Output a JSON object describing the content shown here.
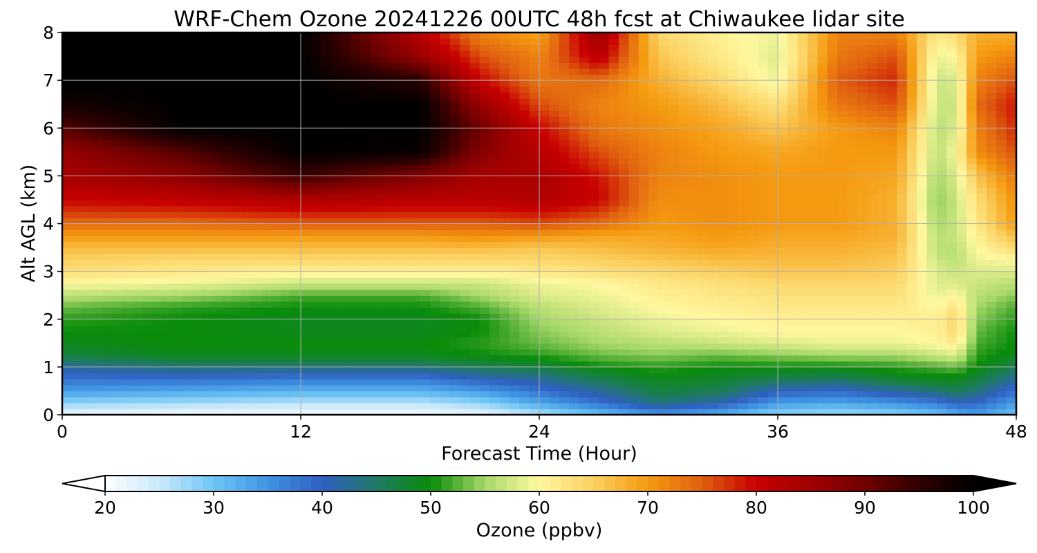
{
  "chart_data": {
    "type": "heatmap",
    "title": "WRF-Chem Ozone  20241226 00UTC 48h fcst at Chiwaukee lidar site",
    "xlabel": "Forecast Time (Hour)",
    "ylabel": "Alt AGL (km)",
    "xlim": [
      0,
      48
    ],
    "ylim": [
      0,
      8
    ],
    "xticks": [
      "0",
      "12",
      "24",
      "36",
      "48"
    ],
    "yticks": [
      "0",
      "1",
      "2",
      "3",
      "4",
      "5",
      "6",
      "7",
      "8"
    ],
    "grid": true,
    "colorbar": {
      "label": "Ozone  (ppbv)",
      "range": [
        20,
        100
      ],
      "ticks": [
        "20",
        "30",
        "40",
        "50",
        "60",
        "70",
        "80",
        "90",
        "100"
      ],
      "extend": "both",
      "stops": [
        [
          20,
          "#ffffff"
        ],
        [
          25,
          "#cbe9fb"
        ],
        [
          30,
          "#6ec5f5"
        ],
        [
          35,
          "#3f93e2"
        ],
        [
          40,
          "#2f5fc2"
        ],
        [
          45,
          "#1f7a64"
        ],
        [
          50,
          "#0a8c0a"
        ],
        [
          55,
          "#a8d86a"
        ],
        [
          60,
          "#fff8a0"
        ],
        [
          65,
          "#fbd060"
        ],
        [
          70,
          "#f59a10"
        ],
        [
          75,
          "#e06010"
        ],
        [
          80,
          "#c80000"
        ],
        [
          85,
          "#a00000"
        ],
        [
          90,
          "#700000"
        ],
        [
          95,
          "#300000"
        ],
        [
          100,
          "#000000"
        ]
      ]
    },
    "x_hours": [
      0,
      6,
      12,
      18,
      21,
      24,
      27,
      30,
      33,
      36,
      39,
      42,
      44,
      45,
      46,
      48
    ],
    "alt_km": [
      0,
      0.25,
      0.5,
      0.75,
      1,
      1.25,
      1.5,
      1.75,
      2,
      2.25,
      2.5,
      2.75,
      3,
      3.25,
      3.5,
      3.75,
      4,
      4.5,
      5,
      5.5,
      6,
      6.5,
      7,
      7.5,
      8
    ],
    "ozone_ppbv_rows_by_altitude": [
      [
        22,
        21,
        21,
        21,
        22,
        26,
        30,
        34,
        32,
        28,
        27,
        28,
        30,
        32,
        34,
        30
      ],
      [
        28,
        27,
        26,
        26,
        28,
        33,
        38,
        44,
        41,
        34,
        33,
        35,
        37,
        40,
        39,
        34
      ],
      [
        34,
        33,
        32,
        32,
        34,
        38,
        42,
        47,
        46,
        40,
        39,
        42,
        44,
        46,
        44,
        38
      ],
      [
        38,
        38,
        37,
        37,
        40,
        42,
        46,
        49,
        48,
        46,
        45,
        48,
        49,
        49,
        47,
        42
      ],
      [
        42,
        44,
        44,
        44,
        46,
        47,
        50,
        51,
        50,
        50,
        50,
        51,
        52,
        53,
        50,
        46
      ],
      [
        47,
        49,
        49,
        49,
        50,
        51,
        53,
        54,
        53,
        54,
        55,
        55,
        57,
        58,
        51,
        49
      ],
      [
        49,
        50,
        50,
        50,
        51,
        53,
        55,
        56,
        57,
        58,
        59,
        59,
        60,
        62,
        52,
        50
      ],
      [
        50,
        50,
        49,
        49,
        50,
        54,
        56,
        58,
        59,
        60,
        60,
        60,
        61,
        64,
        53,
        50
      ],
      [
        51,
        50,
        49,
        49,
        50,
        55,
        57,
        59,
        60,
        61,
        61,
        61,
        61,
        64,
        54,
        51
      ],
      [
        53,
        51,
        50,
        50,
        52,
        56,
        58,
        60,
        61,
        62,
        62,
        62,
        60,
        63,
        55,
        52
      ],
      [
        56,
        55,
        52,
        52,
        55,
        58,
        59,
        61,
        62,
        63,
        63,
        63,
        59,
        60,
        56,
        54
      ],
      [
        60,
        59,
        57,
        57,
        57,
        59,
        60,
        62,
        63,
        64,
        64,
        64,
        58,
        58,
        57,
        56
      ],
      [
        63,
        62,
        61,
        61,
        61,
        62,
        63,
        64,
        65,
        66,
        66,
        65,
        58,
        57,
        58,
        58
      ],
      [
        65,
        64,
        64,
        64,
        64,
        64,
        65,
        66,
        67,
        67,
        67,
        66,
        57,
        56,
        59,
        60
      ],
      [
        67,
        67,
        67,
        67,
        67,
        66,
        67,
        68,
        69,
        68,
        68,
        67,
        56,
        56,
        60,
        64
      ],
      [
        70,
        70,
        70,
        70,
        71,
        70,
        69,
        69,
        70,
        69,
        69,
        68,
        56,
        57,
        61,
        67
      ],
      [
        74,
        74,
        75,
        75,
        75,
        76,
        74,
        70,
        71,
        70,
        70,
        68,
        55,
        57,
        62,
        70
      ],
      [
        80,
        81,
        83,
        82,
        82,
        83,
        80,
        71,
        71,
        70,
        70,
        68,
        54,
        57,
        63,
        71
      ],
      [
        84,
        87,
        94,
        88,
        84,
        84,
        79,
        72,
        71,
        70,
        70,
        69,
        55,
        58,
        66,
        73
      ],
      [
        86,
        92,
        100,
        99,
        88,
        82,
        76,
        72,
        70,
        69,
        70,
        70,
        56,
        60,
        71,
        76
      ],
      [
        92,
        100,
        100,
        100,
        90,
        80,
        73,
        71,
        69,
        66,
        70,
        72,
        56,
        58,
        72,
        78
      ],
      [
        98,
        100,
        100,
        100,
        86,
        76,
        72,
        70,
        67,
        63,
        73,
        76,
        57,
        57,
        74,
        79
      ],
      [
        100,
        100,
        100,
        96,
        80,
        73,
        74,
        68,
        64,
        59,
        75,
        78,
        57,
        58,
        72,
        76
      ],
      [
        100,
        100,
        100,
        86,
        76,
        72,
        82,
        66,
        62,
        58,
        73,
        76,
        59,
        60,
        70,
        72
      ],
      [
        100,
        100,
        100,
        82,
        72,
        69,
        86,
        64,
        61,
        59,
        72,
        72,
        62,
        64,
        68,
        68
      ]
    ]
  }
}
